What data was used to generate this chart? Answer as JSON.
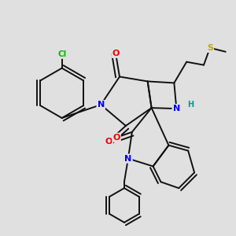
{
  "bg_color": "#e0e0e0",
  "bond_color": "#111111",
  "bond_width": 1.4,
  "atom_colors": {
    "N": "#0000ee",
    "O": "#ee0000",
    "S": "#bbaa00",
    "Cl": "#00bb00",
    "H": "#009999",
    "C": "#111111"
  }
}
